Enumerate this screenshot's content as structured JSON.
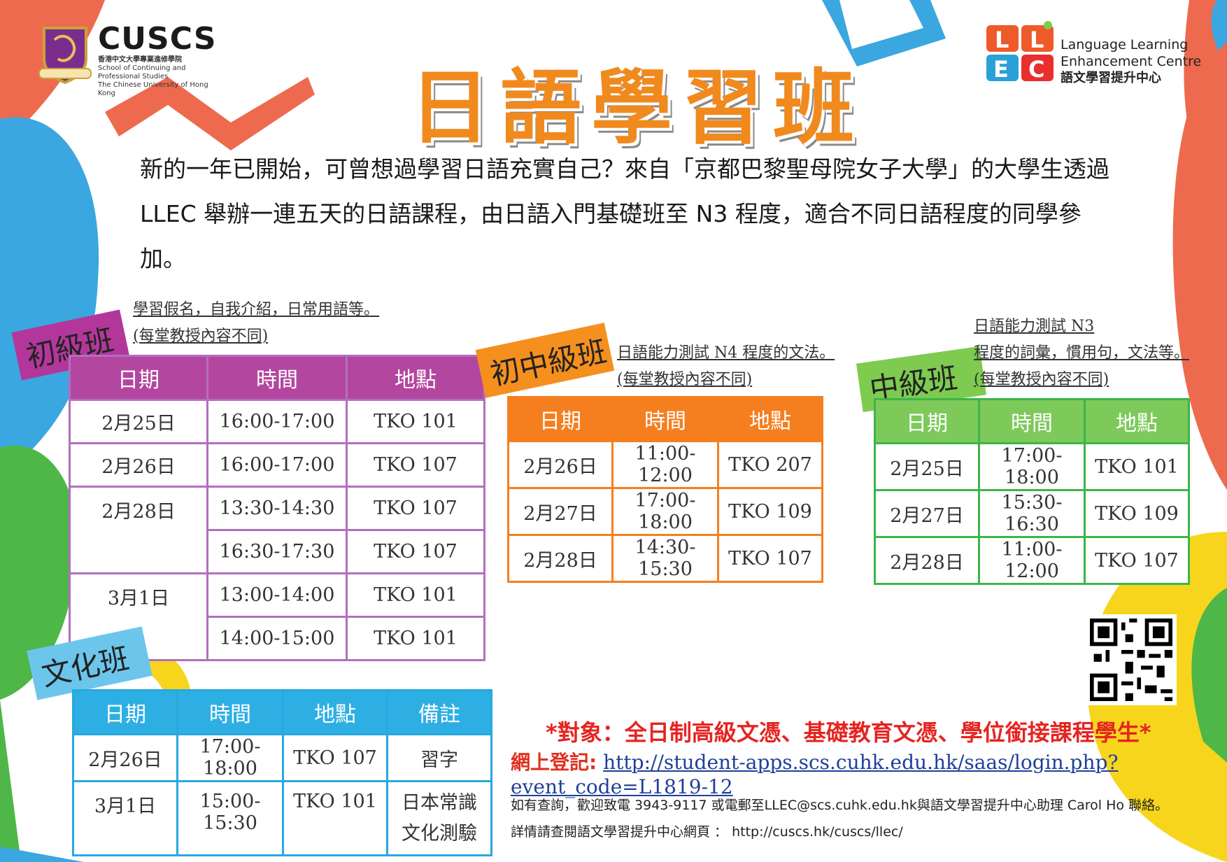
{
  "colors": {
    "orange": "#f08a1e",
    "purple": "#b3479f",
    "orange_table": "#f57e1f",
    "green": "#7dc95a",
    "blue": "#2eafe3",
    "red": "#e52421"
  },
  "header": {
    "cuscs_logo": "CUSCS",
    "cuscs_sub_zh": "香港中文大學專業進修學院",
    "cuscs_sub_en1": "School of Continuing and Professional Studies",
    "cuscs_sub_en2": "The Chinese University of Hong Kong",
    "llec_en1": "Language Learning",
    "llec_en2": "Enhancement Centre",
    "llec_zh": "語文學習提升中心"
  },
  "title": "日語學習班",
  "intro": "新的一年已開始，可曾想過學習日語充實自己？來自「京都巴黎聖母院女子大學」的大學生透過 LLEC 舉辦一連五天的日語課程，由日語入門基礎班至 N3 程度，適合不同日語程度的同學參加。",
  "headers": {
    "date": "日期",
    "time": "時間",
    "venue": "地點",
    "remark": "備註"
  },
  "beginner": {
    "label": "初級班",
    "note1": "學習假名，自我介紹，日常用語等。",
    "note2": "(每堂教授內容不同)",
    "rows": [
      {
        "date": "2月25日",
        "time": "16:00-17:00",
        "venue": "TKO 101"
      },
      {
        "date": "2月26日",
        "time": "16:00-17:00",
        "venue": "TKO 107"
      },
      {
        "date": "2月28日",
        "time": "13:30-14:30",
        "venue": "TKO 107"
      },
      {
        "time": "16:30-17:30",
        "venue": "TKO 107"
      },
      {
        "date": "3月1日",
        "time": "13:00-14:00",
        "venue": "TKO 101"
      },
      {
        "time": "14:00-15:00",
        "venue": "TKO 101"
      }
    ]
  },
  "pre_intermediate": {
    "label": "初中級班",
    "note1": "日語能力測試 N4 程度的文法。",
    "note2": "(每堂教授內容不同)",
    "rows": [
      {
        "date": "2月26日",
        "time": "11:00-12:00",
        "venue": "TKO 207"
      },
      {
        "date": "2月27日",
        "time": "17:00-18:00",
        "venue": "TKO 109"
      },
      {
        "date": "2月28日",
        "time": "14:30-15:30",
        "venue": "TKO 107"
      }
    ]
  },
  "intermediate": {
    "label": "中級班",
    "note1": "日語能力測試 N3",
    "note2": "程度的詞彙，慣用句，文法等。",
    "note3": "(每堂教授內容不同)",
    "rows": [
      {
        "date": "2月25日",
        "time": "17:00-18:00",
        "venue": "TKO 101"
      },
      {
        "date": "2月27日",
        "time": "15:30-16:30",
        "venue": "TKO 109"
      },
      {
        "date": "2月28日",
        "time": "11:00-12:00",
        "venue": "TKO 107"
      }
    ]
  },
  "culture": {
    "label": "文化班",
    "rows": [
      {
        "date": "2月26日",
        "time": "17:00-18:00",
        "venue": "TKO 107",
        "remark": "習字"
      },
      {
        "date": "3月1日",
        "time": "15:00-15:30",
        "venue": "TKO 101",
        "remark1": "日本常識",
        "remark2": "文化測驗"
      }
    ]
  },
  "footer": {
    "target": "*對象：全日制高級文憑、基礎教育文憑、學位銜接課程學生*",
    "reg_label": "網上登記:",
    "reg_url": "http://student-apps.scs.cuhk.edu.hk/saas/login.php?event_code=L1819-12",
    "contact1": "如有查詢，歡迎致電 3943-9117 或電郵至LLEC@scs.cuhk.edu.hk與語文學習提升中心助理 Carol Ho 聯絡。",
    "contact2": "詳情請查閱語文學習提升中心網頁 ： http://cuscs.hk/cuscs/llec/"
  }
}
